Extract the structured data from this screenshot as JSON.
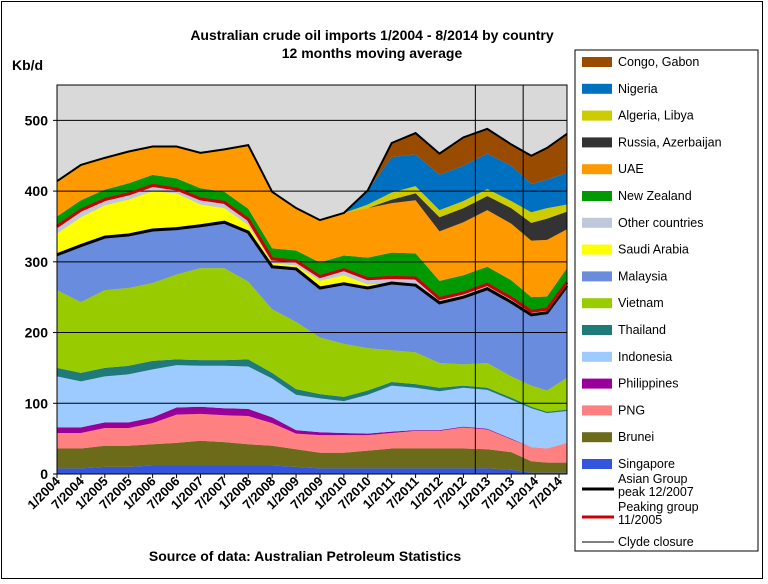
{
  "chart_data": {
    "type": "area",
    "stacked": true,
    "title": "Australian crude oil imports 1/2004 - 8/2014 by country",
    "subtitle": "12 months moving average",
    "ylabel": "Kb/d",
    "source": "Source of data: Australian Petroleum Statistics",
    "ylim": [
      0,
      550
    ],
    "yticks": [
      0,
      100,
      200,
      300,
      400,
      500
    ],
    "xlim": [
      2004.0,
      2014.667
    ],
    "xtick_labels": [
      "1/2004",
      "7/2004",
      "1/2005",
      "7/2005",
      "1/2006",
      "7/2006",
      "1/2007",
      "7/2007",
      "1/2008",
      "7/2008",
      "1/2009",
      "7/2009",
      "1/2010",
      "7/2010",
      "1/2011",
      "7/2011",
      "1/2012",
      "7/2012",
      "1/2013",
      "7/2013",
      "1/2014",
      "7/2014"
    ],
    "grid": "horizontal",
    "legend_position": "right",
    "x": [
      2004.0,
      2004.5,
      2005.0,
      2005.5,
      2006.0,
      2006.5,
      2007.0,
      2007.5,
      2008.0,
      2008.5,
      2009.0,
      2009.5,
      2010.0,
      2010.5,
      2011.0,
      2011.5,
      2012.0,
      2012.5,
      2013.0,
      2013.5,
      2013.92,
      2014.25,
      2014.667
    ],
    "series": [
      {
        "name": "Singapore",
        "color": "#3355dd",
        "values": [
          8,
          8,
          10,
          10,
          12,
          12,
          12,
          12,
          12,
          12,
          10,
          8,
          8,
          8,
          8,
          8,
          8,
          8,
          8,
          6,
          2,
          2,
          2
        ]
      },
      {
        "name": "Brunei",
        "color": "#6b6b1a",
        "values": [
          28,
          28,
          30,
          30,
          30,
          32,
          35,
          33,
          30,
          28,
          25,
          22,
          22,
          25,
          28,
          28,
          28,
          28,
          27,
          25,
          16,
          14,
          14
        ]
      },
      {
        "name": "PNG",
        "color": "#ff8080",
        "values": [
          22,
          22,
          25,
          25,
          30,
          40,
          38,
          38,
          40,
          32,
          22,
          25,
          25,
          22,
          22,
          25,
          25,
          30,
          28,
          18,
          20,
          20,
          28
        ]
      },
      {
        "name": "Philippines",
        "color": "#990099",
        "values": [
          8,
          8,
          8,
          8,
          8,
          10,
          10,
          10,
          10,
          8,
          5,
          4,
          3,
          2,
          2,
          1,
          1,
          1,
          1,
          1,
          0,
          0,
          0
        ]
      },
      {
        "name": "Indonesia",
        "color": "#9dcbff",
        "values": [
          72,
          65,
          65,
          68,
          68,
          60,
          58,
          60,
          60,
          55,
          50,
          48,
          45,
          55,
          65,
          60,
          55,
          55,
          55,
          55,
          55,
          50,
          45
        ]
      },
      {
        "name": "Thailand",
        "color": "#1f7a7a",
        "values": [
          12,
          12,
          12,
          12,
          12,
          8,
          8,
          8,
          10,
          8,
          8,
          6,
          6,
          6,
          5,
          5,
          5,
          3,
          3,
          3,
          2,
          2,
          2
        ]
      },
      {
        "name": "Vietnam",
        "color": "#99cc00",
        "values": [
          110,
          100,
          110,
          110,
          110,
          120,
          130,
          130,
          110,
          90,
          95,
          80,
          75,
          60,
          45,
          45,
          35,
          30,
          35,
          30,
          30,
          30,
          45
        ]
      },
      {
        "name": "Malaysia",
        "color": "#6a8cdf",
        "values": [
          50,
          80,
          75,
          75,
          75,
          65,
          60,
          65,
          70,
          60,
          75,
          70,
          85,
          85,
          95,
          95,
          85,
          95,
          105,
          105,
          100,
          110,
          130
        ]
      },
      {
        "name": "Saudi Arabia",
        "color": "#ffff00",
        "values": [
          30,
          40,
          45,
          50,
          55,
          50,
          30,
          20,
          10,
          5,
          5,
          10,
          12,
          5,
          0,
          0,
          0,
          0,
          0,
          0,
          0,
          0,
          0
        ]
      },
      {
        "name": "Other countries",
        "color": "#c0c8dc",
        "values": [
          10,
          10,
          8,
          8,
          8,
          6,
          8,
          8,
          8,
          6,
          6,
          6,
          8,
          8,
          8,
          10,
          6,
          6,
          6,
          6,
          5,
          5,
          5
        ]
      },
      {
        "name": "New Zealand",
        "color": "#009900",
        "values": [
          14,
          14,
          14,
          15,
          15,
          15,
          15,
          15,
          15,
          15,
          15,
          20,
          20,
          30,
          35,
          35,
          25,
          25,
          25,
          25,
          20,
          18,
          20
        ]
      },
      {
        "name": "UAE",
        "color": "#ff9900",
        "values": [
          50,
          50,
          45,
          45,
          40,
          45,
          50,
          60,
          90,
          80,
          60,
          60,
          60,
          70,
          70,
          75,
          70,
          75,
          80,
          80,
          80,
          80,
          55
        ]
      },
      {
        "name": "Russia, Azerbaijan",
        "color": "#333333",
        "values": [
          0,
          0,
          0,
          0,
          0,
          0,
          0,
          0,
          0,
          0,
          0,
          0,
          0,
          0,
          5,
          10,
          20,
          20,
          20,
          22,
          25,
          30,
          25
        ]
      },
      {
        "name": "Algeria, Libya",
        "color": "#cccc00",
        "values": [
          0,
          0,
          0,
          0,
          0,
          0,
          0,
          0,
          0,
          0,
          0,
          0,
          0,
          5,
          10,
          10,
          10,
          10,
          10,
          10,
          15,
          15,
          10
        ]
      },
      {
        "name": "Nigeria",
        "color": "#0070c0",
        "values": [
          0,
          0,
          0,
          0,
          0,
          0,
          0,
          0,
          0,
          0,
          0,
          0,
          0,
          20,
          50,
          45,
          50,
          50,
          50,
          50,
          40,
          40,
          45
        ]
      },
      {
        "name": "Congo, Gabon",
        "color": "#994c00",
        "values": [
          0,
          0,
          0,
          0,
          0,
          0,
          0,
          0,
          0,
          0,
          0,
          0,
          0,
          0,
          20,
          30,
          30,
          40,
          35,
          30,
          40,
          45,
          55
        ]
      }
    ],
    "background_above": {
      "color": "#d9d9d9",
      "value": 550
    },
    "lines": [
      {
        "name": "Asian Group peak 12/2007",
        "color": "#000000",
        "width": 3,
        "stack_top_index": 7
      },
      {
        "name": "Peaking group 11/2005",
        "color": "#cc0000",
        "width": 3,
        "stack_top_index": 9
      },
      {
        "name": "Clyde closure",
        "color": "#000000",
        "width": 1,
        "vertical_at": [
          2012.75,
          2013.75
        ]
      }
    ],
    "legend_order": [
      "Congo, Gabon",
      "Nigeria",
      "Algeria, Libya",
      "Russia, Azerbaijan",
      "UAE",
      "New Zealand",
      "Other countries",
      "Saudi Arabia",
      "Malaysia",
      "Vietnam",
      "Thailand",
      "Indonesia",
      "Philippines",
      "PNG",
      "Brunei",
      "Singapore",
      "Asian Group peak 12/2007",
      "Peaking group 11/2005",
      "Clyde closure"
    ]
  }
}
